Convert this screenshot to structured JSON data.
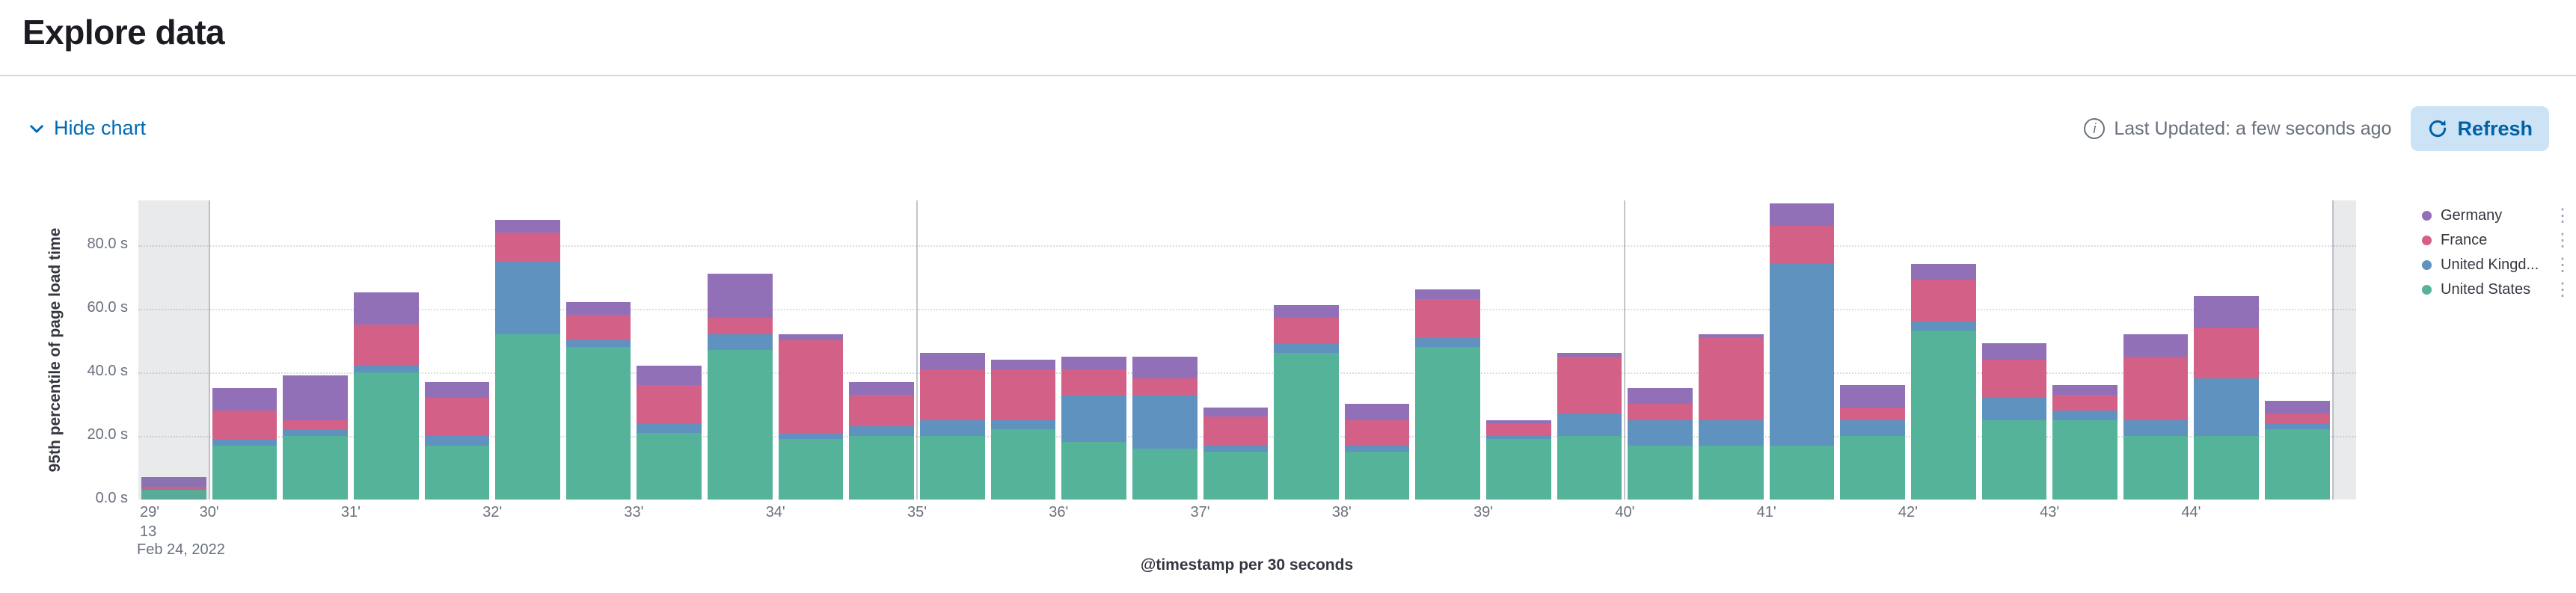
{
  "page": {
    "title": "Explore data"
  },
  "toolbar": {
    "hide_chart_label": "Hide chart",
    "last_updated": "Last Updated: a few seconds ago",
    "refresh_label": "Refresh"
  },
  "chart_data": {
    "type": "bar",
    "stacked": true,
    "title": "",
    "xlabel": "@timestamp per 30 seconds",
    "ylabel": "95th percentile of page load time",
    "y_ticks": [
      "0.0 s",
      "20.0 s",
      "40.0 s",
      "60.0 s",
      "80.0 s"
    ],
    "y_tick_values": [
      0,
      20,
      40,
      60,
      80
    ],
    "ylim": [
      0,
      94
    ],
    "grid": true,
    "legend_position": "right",
    "x_tick_labels": [
      "29'",
      "30'",
      "31'",
      "32'",
      "33'",
      "34'",
      "35'",
      "36'",
      "37'",
      "38'",
      "39'",
      "40'",
      "41'",
      "42'",
      "43'",
      "44'"
    ],
    "x_context_labels": [
      "13",
      "Feb 24, 2022"
    ],
    "major_gridline_boundaries": [
      1,
      11,
      21,
      31
    ],
    "series": [
      {
        "name": "United States",
        "color": "#54b399",
        "values": [
          3,
          17,
          20,
          40,
          17,
          52,
          48,
          21,
          47,
          19,
          20,
          20,
          22,
          18,
          16,
          15,
          46,
          15,
          48,
          19,
          20,
          17,
          17,
          17,
          20,
          53,
          25,
          25,
          20,
          20,
          22
        ]
      },
      {
        "name": "United Kingdom",
        "color": "#6092c0",
        "values": [
          0,
          2,
          2,
          2,
          3,
          23,
          2,
          3,
          5,
          2,
          3,
          5,
          3,
          15,
          17,
          2,
          3,
          2,
          3,
          1,
          7,
          8,
          8,
          57,
          5,
          3,
          7,
          3,
          5,
          18,
          2
        ]
      },
      {
        "name": "France",
        "color": "#d36086",
        "values": [
          1,
          9,
          3,
          13,
          12,
          9,
          8,
          12,
          5,
          29,
          10,
          16,
          16,
          8,
          5,
          9,
          8,
          8,
          12,
          4,
          18,
          5,
          26,
          12,
          4,
          13,
          12,
          5,
          20,
          16,
          3
        ]
      },
      {
        "name": "Germany",
        "color": "#9170b8",
        "values": [
          3,
          7,
          14,
          10,
          5,
          4,
          4,
          6,
          14,
          2,
          4,
          5,
          3,
          4,
          7,
          3,
          4,
          5,
          3,
          1,
          1,
          5,
          1,
          7,
          7,
          5,
          5,
          3,
          7,
          10,
          4
        ]
      }
    ],
    "legend": [
      {
        "label": "Germany",
        "color": "#9170b8"
      },
      {
        "label": "France",
        "color": "#d36086"
      },
      {
        "label": "United Kingd...",
        "color": "#6092c0"
      },
      {
        "label": "United States",
        "color": "#54b399"
      }
    ]
  }
}
